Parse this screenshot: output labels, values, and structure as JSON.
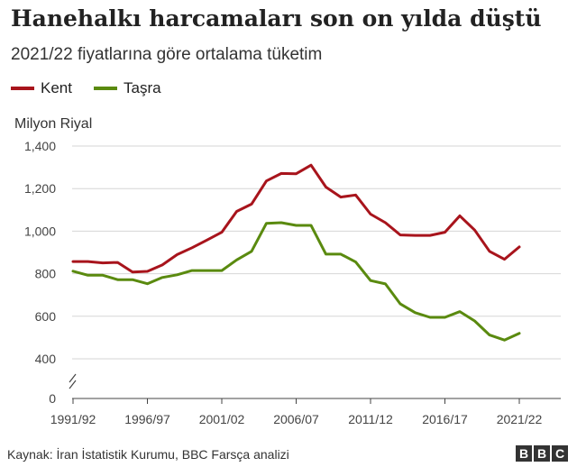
{
  "chart_data": {
    "type": "line",
    "title": "Hanehalkı harcamaları son on yılda düştü",
    "subtitle": "2021/22 fiyatlarına göre ortalama tüketim",
    "ylabel": "Milyon Riyal",
    "ylim": [
      0,
      1400
    ],
    "yticks": [
      0,
      400,
      600,
      800,
      "1,000",
      "1,200",
      "1,400"
    ],
    "ytick_values": [
      0,
      400,
      600,
      800,
      1000,
      1200,
      1400
    ],
    "y_axis_break": true,
    "x": [
      "1991/92",
      "1992/93",
      "1993/94",
      "1994/95",
      "1995/96",
      "1996/97",
      "1997/98",
      "1998/99",
      "1999/00",
      "2000/01",
      "2001/02",
      "2002/03",
      "2003/04",
      "2004/05",
      "2005/06",
      "2006/07",
      "2007/08",
      "2008/09",
      "2009/10",
      "2010/11",
      "2011/12",
      "2012/13",
      "2013/14",
      "2014/15",
      "2015/16",
      "2016/17",
      "2017/18",
      "2018/19",
      "2019/20",
      "2020/21",
      "2021/22"
    ],
    "xticks": [
      "1991/92",
      "1996/97",
      "2001/02",
      "2006/07",
      "2011/12",
      "2016/17",
      "2021/22"
    ],
    "series": [
      {
        "name": "Kent",
        "color": "#a8141c",
        "values": [
          857,
          857,
          851,
          853,
          808,
          811,
          841,
          890,
          922,
          958,
          995,
          1093,
          1127,
          1236,
          1271,
          1270,
          1310,
          1207,
          1160,
          1170,
          1080,
          1040,
          982,
          980,
          980,
          995,
          1072,
          1005,
          905,
          868,
          926
        ]
      },
      {
        "name": "Taşra",
        "color": "#5a8a0f",
        "values": [
          812,
          793,
          793,
          772,
          772,
          753,
          782,
          795,
          815,
          815,
          815,
          865,
          905,
          1037,
          1040,
          1027,
          1027,
          892,
          892,
          855,
          768,
          752,
          658,
          617,
          595,
          595,
          622,
          578,
          512,
          488,
          520
        ]
      }
    ],
    "grid": true,
    "legend_position": "top-left"
  },
  "footer": {
    "source": "Kaynak: İran İstatistik Kurumu, BBC Farsça analizi",
    "logo_letters": [
      "B",
      "B",
      "C"
    ]
  }
}
